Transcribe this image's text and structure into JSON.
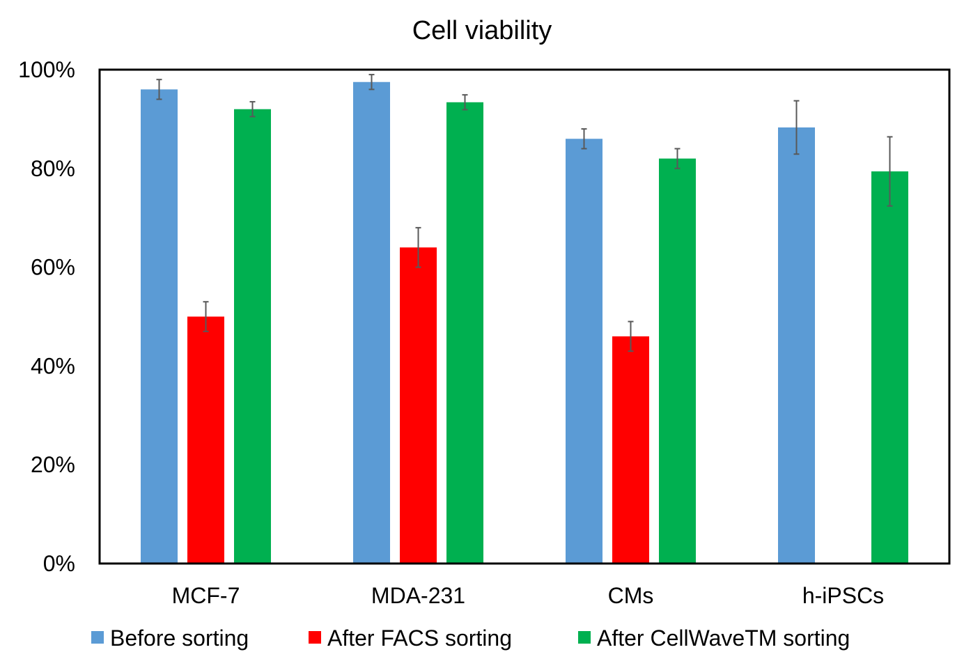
{
  "chart_data": {
    "type": "bar",
    "title": "Cell viability",
    "xlabel": "",
    "ylabel": "",
    "ylim": [
      0,
      100
    ],
    "yticks": [
      "0%",
      "20%",
      "40%",
      "60%",
      "80%",
      "100%"
    ],
    "grid": false,
    "legend_position": "bottom",
    "categories": [
      "MCF-7",
      "MDA-231",
      "CMs",
      "h-iPSCs"
    ],
    "series": [
      {
        "name": "Before sorting",
        "color": "#5B9BD5",
        "values": [
          96,
          97.5,
          86,
          88.3
        ],
        "errors": [
          2,
          1.5,
          2,
          5.4
        ]
      },
      {
        "name": "After FACS sorting",
        "color": "#FF0000",
        "values": [
          50,
          64,
          46,
          null
        ],
        "errors": [
          3,
          4,
          3,
          null
        ]
      },
      {
        "name": "After CellWaveTM sorting",
        "color": "#00B050",
        "values": [
          92,
          93.4,
          82,
          79.4
        ],
        "errors": [
          1.5,
          1.5,
          2,
          7
        ]
      }
    ]
  }
}
